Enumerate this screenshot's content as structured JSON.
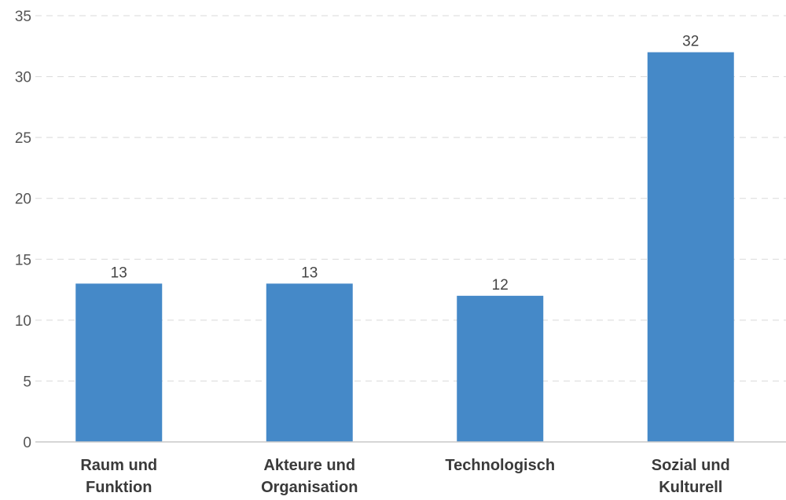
{
  "chart_data": {
    "type": "bar",
    "categories": [
      [
        "Raum und",
        "Funktion"
      ],
      [
        "Akteure und",
        "Organisation"
      ],
      [
        "Technologisch"
      ],
      [
        "Sozial und",
        "Kulturell"
      ]
    ],
    "values": [
      13,
      13,
      12,
      32
    ],
    "data_labels": [
      "13",
      "13",
      "12",
      "32"
    ],
    "ylim": [
      0,
      35
    ],
    "yticks": [
      0,
      5,
      10,
      15,
      20,
      25,
      30,
      35
    ],
    "title": "",
    "xlabel": "",
    "ylabel": "",
    "grid": true,
    "bar_color": "#4589c8"
  }
}
